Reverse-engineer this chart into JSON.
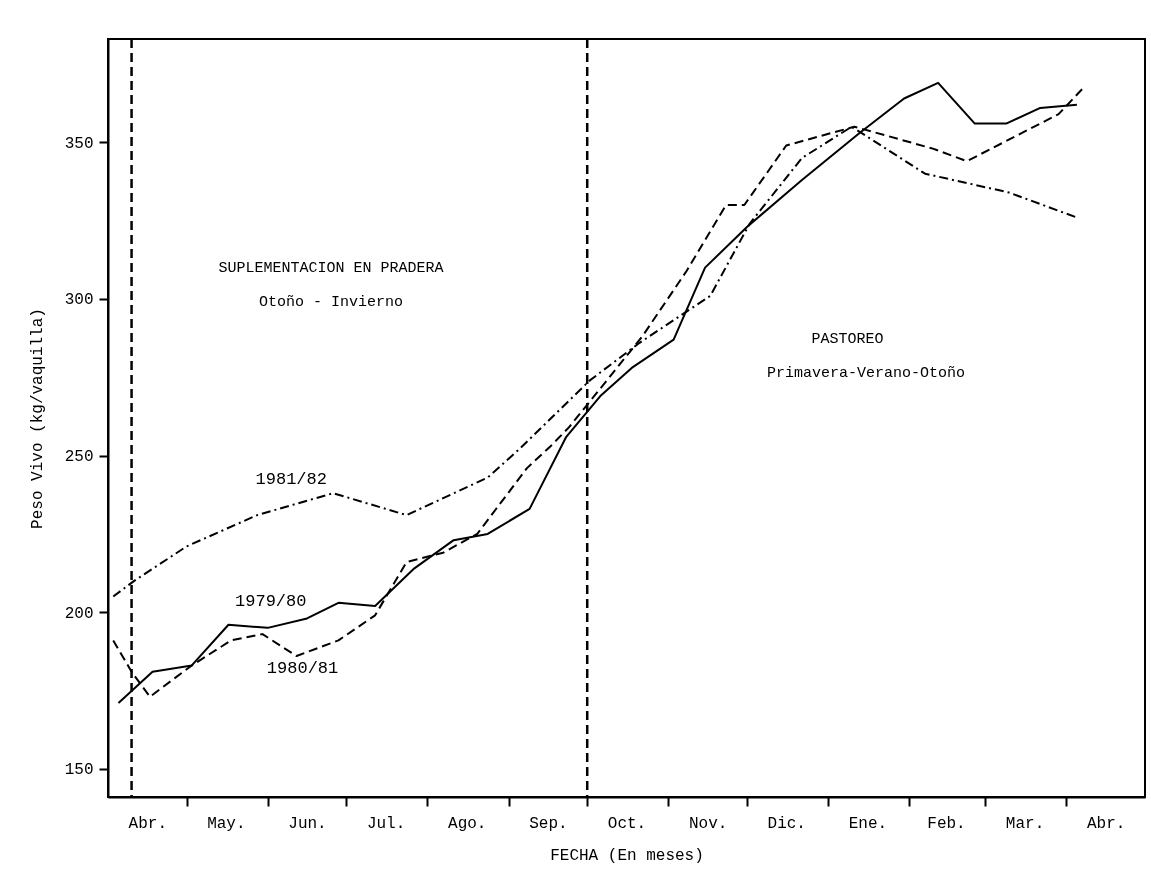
{
  "chart_data": {
    "type": "line",
    "xlabel": "FECHA (En meses)",
    "ylabel": "Peso Vivo (kg/vaquilla)",
    "xlim": [
      "1979-04-01",
      "1980-05-01"
    ],
    "ylim": [
      141,
      383
    ],
    "xticks": [
      {
        "value": "1979-04-16",
        "label": "Abr."
      },
      {
        "value": "1979-05-01",
        "label": null
      },
      {
        "value": "1979-05-16",
        "label": "May."
      },
      {
        "value": "1979-06-01",
        "label": null
      },
      {
        "value": "1979-06-16",
        "label": "Jun."
      },
      {
        "value": "1979-07-01",
        "label": null
      },
      {
        "value": "1979-07-16",
        "label": "Jul."
      },
      {
        "value": "1979-08-01",
        "label": null
      },
      {
        "value": "1979-08-16",
        "label": "Ago."
      },
      {
        "value": "1979-09-01",
        "label": null
      },
      {
        "value": "1979-09-16",
        "label": "Sep."
      },
      {
        "value": "1979-10-01",
        "label": null
      },
      {
        "value": "1979-10-16",
        "label": "Oct."
      },
      {
        "value": "1979-11-01",
        "label": null
      },
      {
        "value": "1979-11-16",
        "label": "Nov."
      },
      {
        "value": "1979-12-01",
        "label": null
      },
      {
        "value": "1979-12-16",
        "label": "Dic."
      },
      {
        "value": "1980-01-01",
        "label": null
      },
      {
        "value": "1980-01-16",
        "label": "Ene."
      },
      {
        "value": "1980-02-01",
        "label": null
      },
      {
        "value": "1980-02-15",
        "label": "Feb."
      },
      {
        "value": "1980-03-01",
        "label": null
      },
      {
        "value": "1980-03-16",
        "label": "Mar."
      },
      {
        "value": "1980-04-01",
        "label": null
      },
      {
        "value": "1980-04-16",
        "label": "Abr."
      }
    ],
    "yticks": [
      150,
      200,
      250,
      300,
      350
    ],
    "grid": false,
    "marker": "none",
    "series": [
      {
        "name": "1979/80",
        "color": "#000000",
        "line_style": "solid",
        "x": [
          "1979-04-05",
          "1979-04-18",
          "1979-05-03",
          "1979-05-17",
          "1979-06-01",
          "1979-06-16",
          "1979-06-28",
          "1979-07-12",
          "1979-07-27",
          "1979-08-11",
          "1979-08-24",
          "1979-09-09",
          "1979-09-23",
          "1979-10-06",
          "1979-10-18",
          "1979-11-03",
          "1979-11-15",
          "1979-12-01",
          "1979-12-22",
          "1980-01-13",
          "1980-01-30",
          "1980-02-12",
          "1980-02-26",
          "1980-03-09",
          "1980-03-22",
          "1980-04-05"
        ],
        "values": [
          171,
          181,
          183,
          196,
          195,
          198,
          203,
          202,
          214,
          223,
          225,
          233,
          256,
          269,
          278,
          287,
          310,
          323,
          338,
          353,
          364,
          369,
          356,
          356,
          361,
          362
        ]
      },
      {
        "name": "1980/81",
        "color": "#000000",
        "line_style": "dashed",
        "x": [
          "1979-04-03",
          "1979-04-10",
          "1979-04-17",
          "1979-05-03",
          "1979-05-18",
          "1979-05-30",
          "1979-06-12",
          "1979-06-28",
          "1979-07-12",
          "1979-07-24",
          "1979-08-07",
          "1979-08-20",
          "1979-09-08",
          "1979-09-17",
          "1979-09-24",
          "1979-10-22",
          "1979-11-08",
          "1979-11-23",
          "1979-11-30",
          "1979-12-16",
          "1980-01-11",
          "1980-02-10",
          "1980-02-23",
          "1980-03-29",
          "1980-04-07"
        ],
        "values": [
          191,
          181,
          173,
          183,
          191,
          193,
          186,
          191,
          199,
          216,
          219,
          225,
          246,
          253,
          259,
          288,
          309,
          330,
          330,
          349,
          355,
          348,
          344,
          359,
          367
        ]
      },
      {
        "name": "1981/82",
        "color": "#000000",
        "line_style": "dashdot",
        "x": [
          "1979-04-03",
          "1979-04-11",
          "1979-05-01",
          "1979-05-28",
          "1979-06-26",
          "1979-07-24",
          "1979-08-24",
          "1979-09-05",
          "1979-10-02",
          "1979-10-21",
          "1979-11-17",
          "1979-12-02",
          "1979-12-22",
          "1980-01-10",
          "1980-02-07",
          "1980-03-10",
          "1980-04-05"
        ],
        "values": [
          205,
          210,
          221,
          231,
          238,
          231,
          243,
          252,
          274,
          286,
          301,
          324,
          345,
          355,
          340,
          334,
          326
        ]
      }
    ],
    "ref_lines": [
      {
        "axis": "x",
        "value": "1979-04-10",
        "label": null,
        "color": "#000000",
        "line_style": "dashed"
      },
      {
        "axis": "x",
        "value": "1979-10-01",
        "label": null,
        "color": "#000000",
        "line_style": "dashed"
      }
    ],
    "annotations": [
      "SUPLEMENTACION EN PRADERA",
      "Otoño - Invierno",
      "PASTOREO",
      "Primavera-Verano-Otoño"
    ]
  }
}
